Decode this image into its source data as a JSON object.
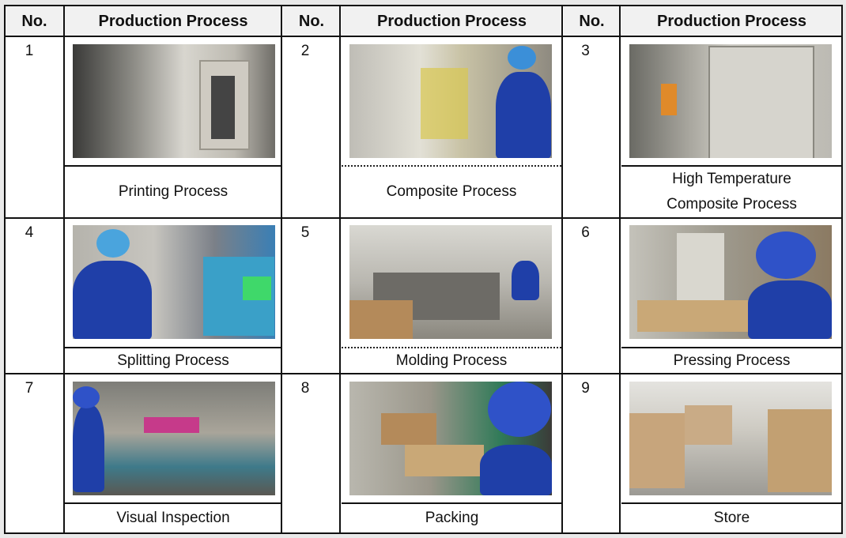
{
  "header": {
    "no_label": "No.",
    "process_label": "Production Process"
  },
  "steps": [
    {
      "no": "1",
      "caption": "Printing Process",
      "photo": "printing-machines-photo"
    },
    {
      "no": "2",
      "caption": "Composite Process",
      "photo": "worker-at-composite-machine-photo"
    },
    {
      "no": "3",
      "caption_line1": "High Temperature",
      "caption_line2": "Composite Process",
      "photo": "high-temperature-oven-photo"
    },
    {
      "no": "4",
      "caption": "Splitting Process",
      "photo": "worker-at-splitting-machine-photo"
    },
    {
      "no": "5",
      "caption": "Molding Process",
      "photo": "bag-molding-machine-photo"
    },
    {
      "no": "6",
      "caption": "Pressing Process",
      "photo": "worker-pressing-bags-photo"
    },
    {
      "no": "7",
      "caption": "Visual Inspection",
      "photo": "worker-inspecting-bags-photo"
    },
    {
      "no": "8",
      "caption": "Packing",
      "photo": "worker-packing-bags-photo"
    },
    {
      "no": "9",
      "caption": "Store",
      "photo": "warehouse-cartons-photo"
    }
  ]
}
